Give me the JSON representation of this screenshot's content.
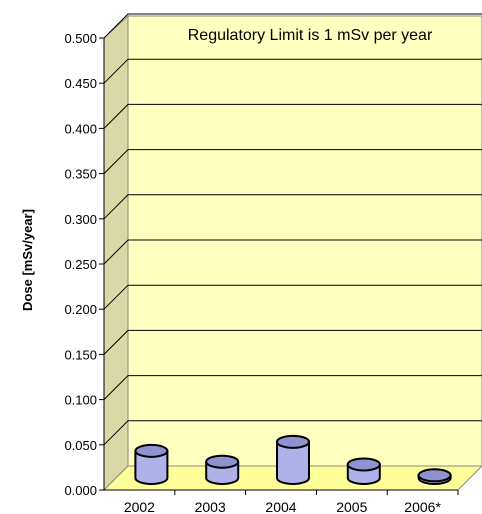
{
  "chart_data": {
    "type": "bar",
    "style": "3d-cylinder",
    "title": "",
    "xlabel": "",
    "ylabel": "Dose [mSv/year]",
    "categories": [
      "2002",
      "2003",
      "2004",
      "2005",
      "2006*"
    ],
    "values": [
      0.03,
      0.018,
      0.04,
      0.015,
      0.003
    ],
    "ylim": [
      0,
      0.5
    ],
    "yticks": [
      "0.000",
      "0.050",
      "0.100",
      "0.150",
      "0.200",
      "0.250",
      "0.300",
      "0.350",
      "0.400",
      "0.450",
      "0.500"
    ],
    "annotation": "Regulatory Limit is 1 mSv per year",
    "grid": true,
    "legend": "none",
    "colors": {
      "wall": "#ffffc0",
      "side_wall": "#d9d9a8",
      "floor": "#ffff99",
      "bar_body": "#aeb2e8",
      "bar_top": "#8e93d0",
      "gridline": "#000000"
    }
  }
}
